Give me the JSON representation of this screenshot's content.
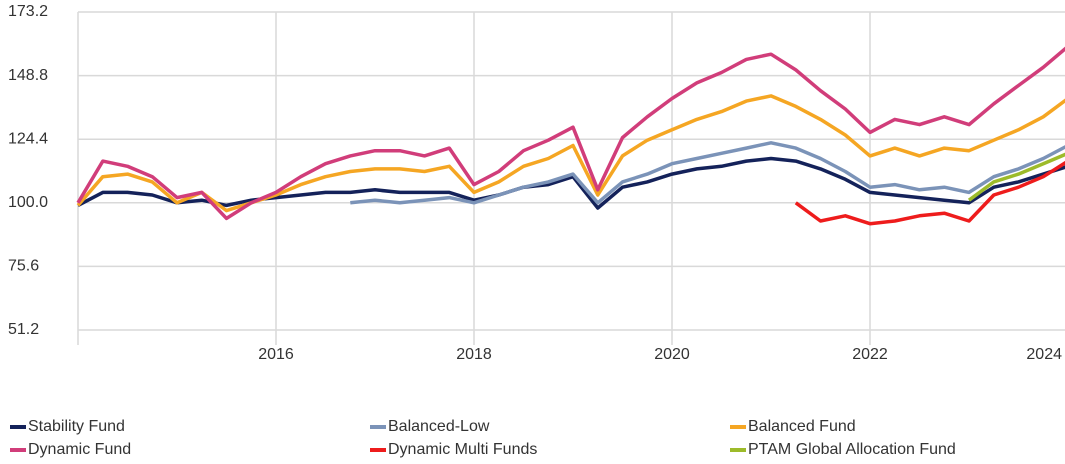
{
  "chart_data": {
    "type": "line",
    "x": [
      2014,
      2014.25,
      2014.5,
      2014.75,
      2015,
      2015.25,
      2015.5,
      2015.75,
      2016,
      2016.25,
      2016.5,
      2016.75,
      2017,
      2017.25,
      2017.5,
      2017.75,
      2018,
      2018.25,
      2018.5,
      2018.75,
      2019,
      2019.25,
      2019.5,
      2019.75,
      2020,
      2020.25,
      2020.5,
      2020.75,
      2021,
      2021.25,
      2021.5,
      2021.75,
      2022,
      2022.25,
      2022.5,
      2022.75,
      2023,
      2023.25,
      2023.5,
      2023.75,
      2024
    ],
    "xlim": [
      2014,
      2024
    ],
    "xticks": [
      2016,
      2018,
      2020,
      2022,
      2024
    ],
    "ylim": [
      51.2,
      173.2
    ],
    "yticks": [
      {
        "value": 51.2,
        "label": "51.2"
      },
      {
        "value": 75.6,
        "label": "75.6"
      },
      {
        "value": 100,
        "label": "100.0"
      },
      {
        "value": 124.4,
        "label": "124.4"
      },
      {
        "value": 148.8,
        "label": "148.8"
      },
      {
        "value": 173.2,
        "label": "173.2"
      }
    ],
    "grid": true,
    "legend": "bottom",
    "series": [
      {
        "name": "Stability Fund",
        "color": "#14225a",
        "values": [
          99,
          104,
          104,
          103,
          100,
          101,
          99,
          101,
          102,
          103,
          104,
          104,
          105,
          104,
          104,
          104,
          101,
          103,
          106,
          107,
          110,
          98,
          106,
          108,
          111,
          113,
          114,
          116,
          117,
          116,
          113,
          109,
          104,
          103,
          102,
          101,
          100,
          106,
          108,
          111,
          114
        ]
      },
      {
        "name": "Balanced-Low",
        "color": "#7b93b8",
        "values": [
          null,
          null,
          null,
          null,
          null,
          null,
          null,
          null,
          null,
          null,
          null,
          100,
          101,
          100,
          101,
          102,
          100,
          103,
          106,
          108,
          111,
          100,
          108,
          111,
          115,
          117,
          119,
          121,
          123,
          121,
          117,
          112,
          106,
          107,
          105,
          106,
          104,
          110,
          113,
          117,
          122
        ]
      },
      {
        "name": "Balanced Fund",
        "color": "#f5a623",
        "values": [
          99,
          110,
          111,
          108,
          100,
          104,
          97,
          100,
          103,
          107,
          110,
          112,
          113,
          113,
          112,
          114,
          104,
          108,
          114,
          117,
          122,
          103,
          118,
          124,
          128,
          132,
          135,
          139,
          141,
          137,
          132,
          126,
          118,
          121,
          118,
          121,
          120,
          124,
          128,
          133,
          140
        ]
      },
      {
        "name": "Dynamic Fund",
        "color": "#d13d7a",
        "values": [
          100,
          116,
          114,
          110,
          102,
          104,
          94,
          100,
          104,
          110,
          115,
          118,
          120,
          120,
          118,
          121,
          107,
          112,
          120,
          124,
          129,
          105,
          125,
          133,
          140,
          146,
          150,
          155,
          157,
          151,
          143,
          136,
          127,
          132,
          130,
          133,
          130,
          138,
          145,
          152,
          160
        ]
      },
      {
        "name": "Dynamic Multi Funds",
        "color": "#ee1c1c",
        "values": [
          null,
          null,
          null,
          null,
          null,
          null,
          null,
          null,
          null,
          null,
          null,
          null,
          null,
          null,
          null,
          null,
          null,
          null,
          null,
          null,
          null,
          null,
          null,
          null,
          null,
          null,
          null,
          null,
          null,
          100,
          93,
          95,
          92,
          93,
          95,
          96,
          93,
          103,
          106,
          110,
          116
        ]
      },
      {
        "name": "PTAM Global Allocation Fund",
        "color": "#9dbb2a",
        "values": [
          null,
          null,
          null,
          null,
          null,
          null,
          null,
          null,
          null,
          null,
          null,
          null,
          null,
          null,
          null,
          null,
          null,
          null,
          null,
          null,
          null,
          null,
          null,
          null,
          null,
          null,
          null,
          null,
          null,
          null,
          null,
          null,
          null,
          null,
          null,
          null,
          101,
          108,
          111,
          115,
          119
        ]
      }
    ]
  }
}
